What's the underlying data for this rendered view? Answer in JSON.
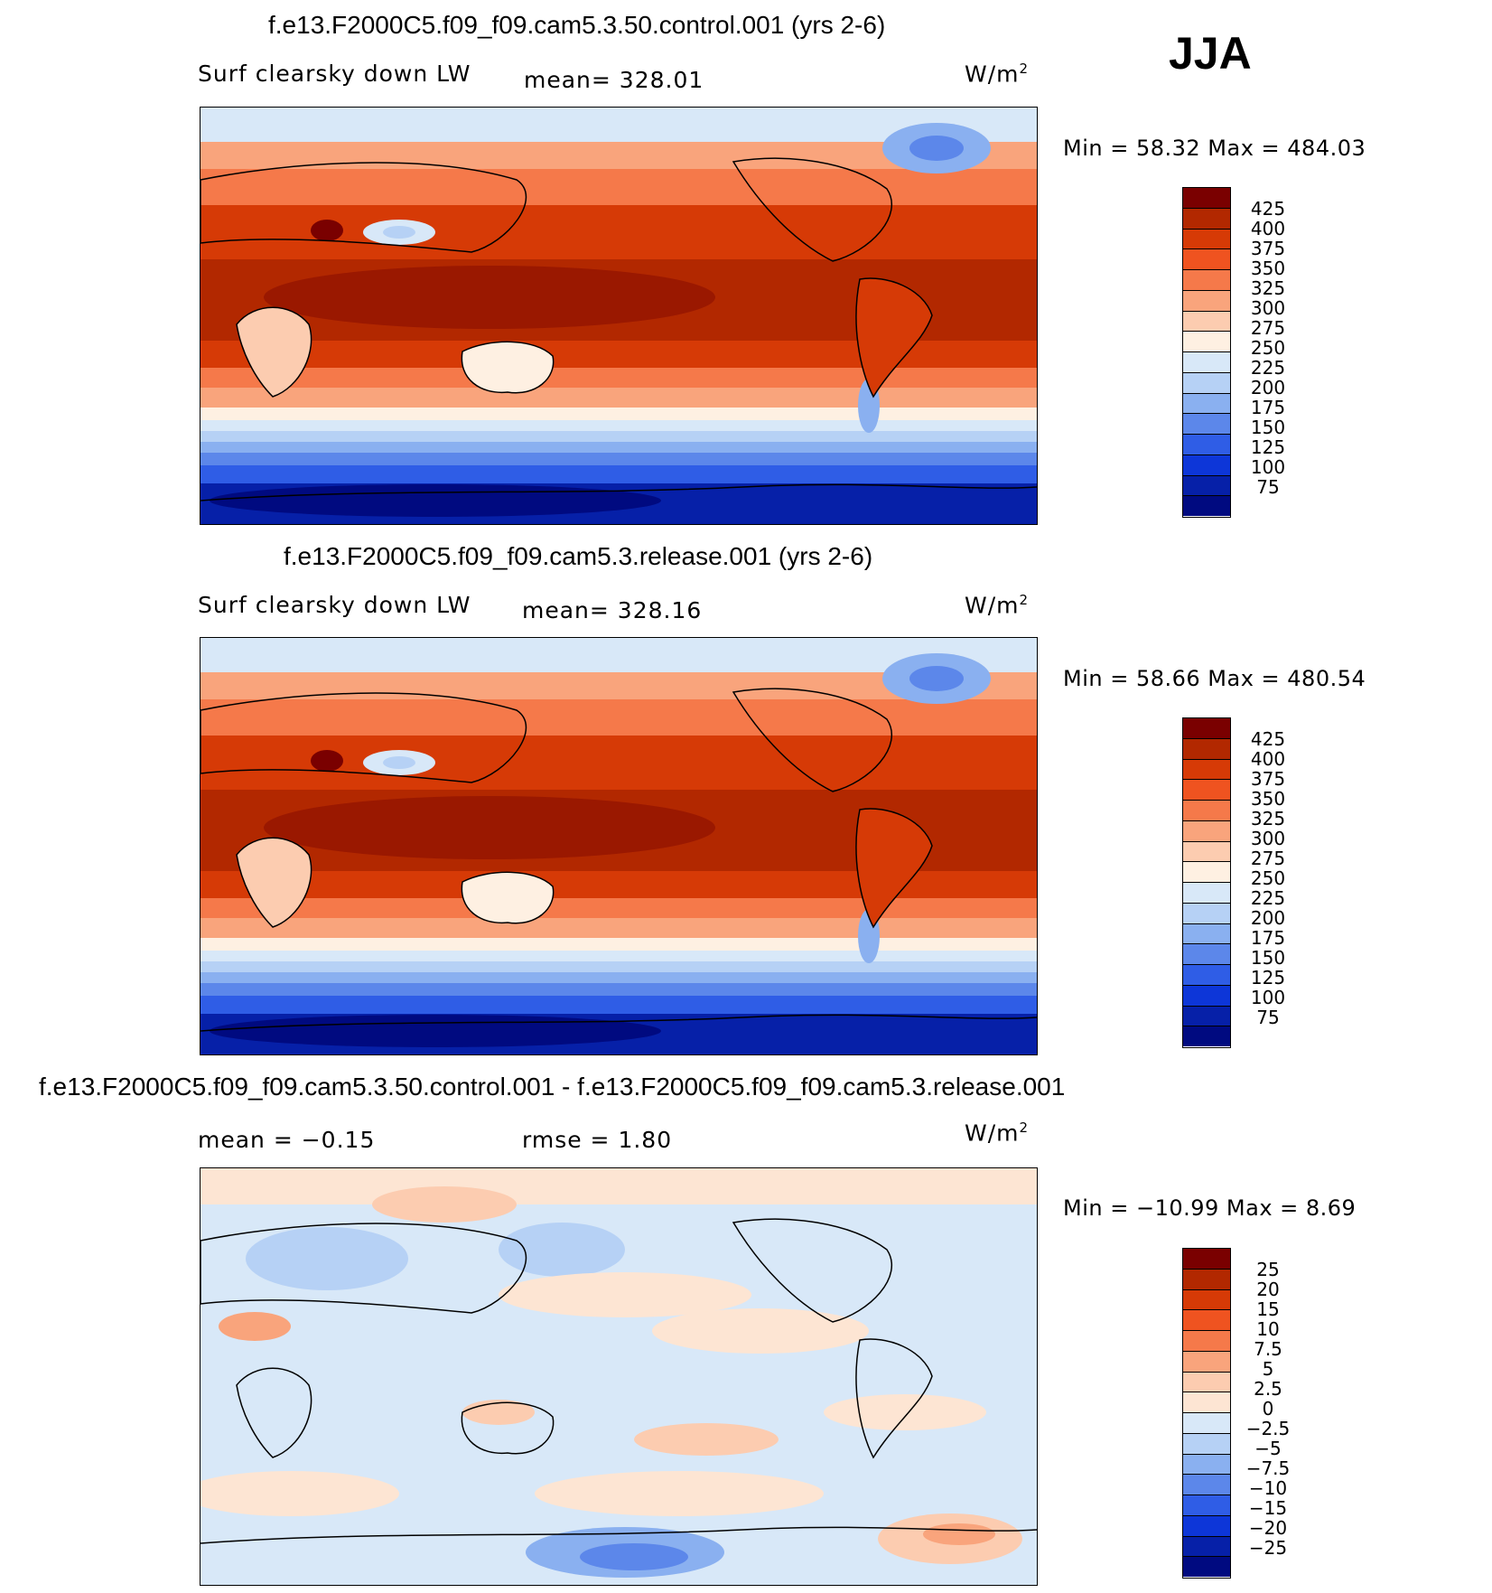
{
  "season": "JJA",
  "units": "W/m",
  "units_exp": "2",
  "panels": [
    {
      "title": "f.e13.F2000C5.f09_f09.cam5.3.50.control.001 (yrs 2-6)",
      "variable": "Surf clearsky down LW",
      "stat": "mean= 328.01",
      "minmax": "Min =  58.32  Max = 484.03",
      "colorbar": [
        "425",
        "400",
        "375",
        "350",
        "325",
        "300",
        "275",
        "250",
        "225",
        "200",
        "175",
        "150",
        "125",
        "100",
        "75"
      ]
    },
    {
      "title": "f.e13.F2000C5.f09_f09.cam5.3.release.001 (yrs 2-6)",
      "variable": "Surf clearsky down LW",
      "stat": "mean= 328.16",
      "minmax": "Min =  58.66  Max = 480.54",
      "colorbar": [
        "425",
        "400",
        "375",
        "350",
        "325",
        "300",
        "275",
        "250",
        "225",
        "200",
        "175",
        "150",
        "125",
        "100",
        "75"
      ]
    },
    {
      "title": "f.e13.F2000C5.f09_f09.cam5.3.50.control.001 - f.e13.F2000C5.f09_f09.cam5.3.release.001",
      "stat_mean": "mean =   −0.15",
      "stat_rmse": "rmse =    1.80",
      "minmax": "Min = −10.99  Max =    8.69",
      "colorbar": [
        "25",
        "20",
        "15",
        "10",
        "7.5",
        "5",
        "2.5",
        "0",
        "−2.5",
        "−5",
        "−7.5",
        "−10",
        "−15",
        "−20",
        "−25"
      ]
    }
  ],
  "colors": {
    "abs_scale": [
      "#7a0000",
      "#b22800",
      "#d63a06",
      "#ef5320",
      "#f5794a",
      "#f9a47c",
      "#fcccb0",
      "#fef0e2",
      "#d8e8f8",
      "#b6d1f5",
      "#8ab0f0",
      "#5c87ea",
      "#2f5de6",
      "#0d36d8",
      "#0620a8",
      "#000a80"
    ],
    "diff_scale": [
      "#7a0000",
      "#b22800",
      "#d63a06",
      "#ef5320",
      "#f5794a",
      "#f9a47c",
      "#fcccb0",
      "#fde5d3",
      "#d8e8f8",
      "#b6d1f5",
      "#8ab0f0",
      "#5c87ea",
      "#2f5de6",
      "#0d36d8",
      "#0620a8",
      "#000a80"
    ]
  }
}
